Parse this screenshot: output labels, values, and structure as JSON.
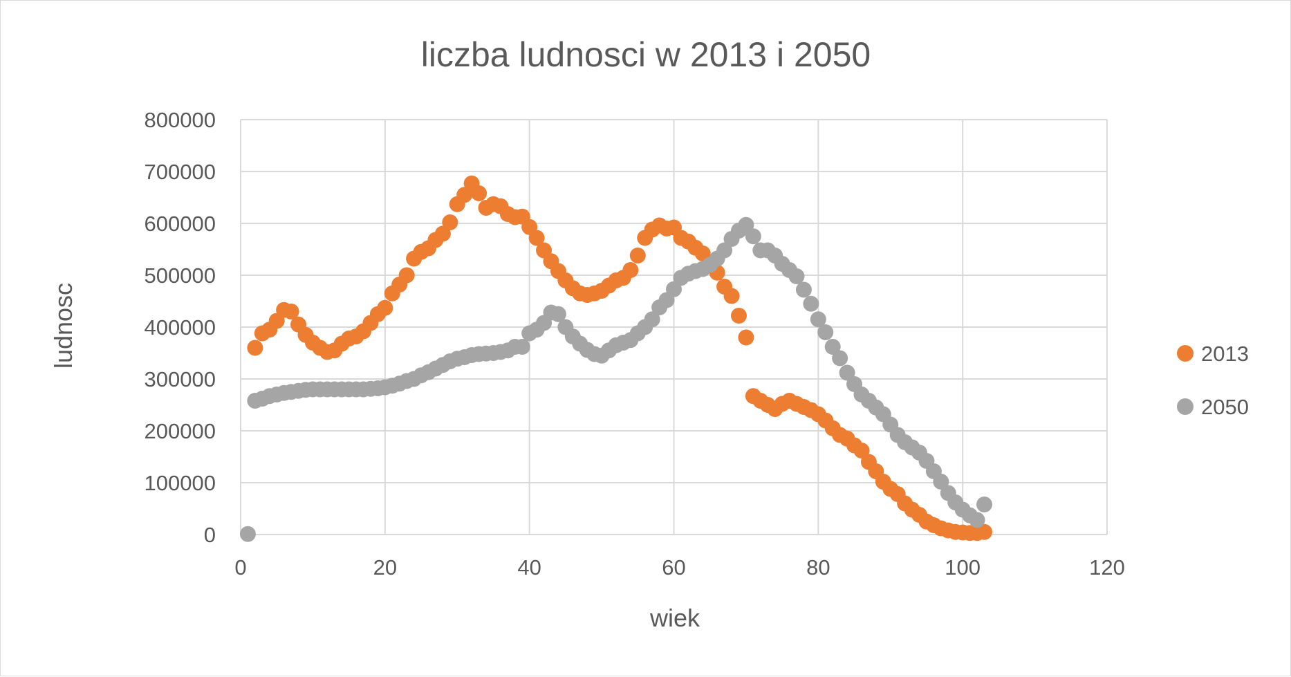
{
  "chart_data": {
    "type": "scatter",
    "title": "liczba ludnosci w 2013 i 2050",
    "xlabel": "wiek",
    "ylabel": "ludnosc",
    "xlim": [
      0,
      120
    ],
    "ylim": [
      0,
      800000
    ],
    "xticks": [
      0,
      20,
      40,
      60,
      80,
      100,
      120
    ],
    "yticks": [
      0,
      100000,
      200000,
      300000,
      400000,
      500000,
      600000,
      700000,
      800000
    ],
    "xtick_labels": [
      "0",
      "20",
      "40",
      "60",
      "80",
      "100",
      "120"
    ],
    "ytick_labels": [
      "0",
      "100000",
      "200000",
      "300000",
      "400000",
      "500000",
      "600000",
      "700000",
      "800000"
    ],
    "grid": true,
    "legend_position": "right",
    "series": [
      {
        "name": "2013",
        "color": "#ED7D31",
        "points": [
          [
            2,
            360000
          ],
          [
            3,
            388000
          ],
          [
            4,
            395000
          ],
          [
            5,
            412000
          ],
          [
            6,
            433000
          ],
          [
            7,
            430000
          ],
          [
            8,
            405000
          ],
          [
            9,
            385000
          ],
          [
            10,
            370000
          ],
          [
            11,
            360000
          ],
          [
            12,
            352000
          ],
          [
            13,
            355000
          ],
          [
            14,
            368000
          ],
          [
            15,
            378000
          ],
          [
            16,
            382000
          ],
          [
            17,
            392000
          ],
          [
            18,
            408000
          ],
          [
            19,
            425000
          ],
          [
            20,
            437000
          ],
          [
            21,
            465000
          ],
          [
            22,
            482000
          ],
          [
            23,
            500000
          ],
          [
            24,
            532000
          ],
          [
            25,
            545000
          ],
          [
            26,
            552000
          ],
          [
            27,
            568000
          ],
          [
            28,
            580000
          ],
          [
            29,
            602000
          ],
          [
            30,
            637000
          ],
          [
            31,
            655000
          ],
          [
            32,
            677000
          ],
          [
            33,
            658000
          ],
          [
            34,
            630000
          ],
          [
            35,
            637000
          ],
          [
            36,
            633000
          ],
          [
            37,
            618000
          ],
          [
            38,
            612000
          ],
          [
            39,
            613000
          ],
          [
            40,
            593000
          ],
          [
            41,
            572000
          ],
          [
            42,
            548000
          ],
          [
            43,
            527000
          ],
          [
            44,
            508000
          ],
          [
            45,
            490000
          ],
          [
            46,
            475000
          ],
          [
            47,
            465000
          ],
          [
            48,
            462000
          ],
          [
            49,
            465000
          ],
          [
            50,
            470000
          ],
          [
            51,
            480000
          ],
          [
            52,
            490000
          ],
          [
            53,
            495000
          ],
          [
            54,
            510000
          ],
          [
            55,
            538000
          ],
          [
            56,
            572000
          ],
          [
            57,
            588000
          ],
          [
            58,
            596000
          ],
          [
            59,
            590000
          ],
          [
            60,
            592000
          ],
          [
            61,
            572000
          ],
          [
            62,
            565000
          ],
          [
            63,
            553000
          ],
          [
            64,
            542000
          ],
          [
            65,
            522000
          ],
          [
            66,
            505000
          ],
          [
            67,
            478000
          ],
          [
            68,
            460000
          ],
          [
            69,
            422000
          ],
          [
            70,
            380000
          ],
          [
            71,
            267000
          ],
          [
            72,
            258000
          ],
          [
            73,
            250000
          ],
          [
            74,
            242000
          ],
          [
            75,
            252000
          ],
          [
            76,
            258000
          ],
          [
            77,
            252000
          ],
          [
            78,
            246000
          ],
          [
            79,
            240000
          ],
          [
            80,
            232000
          ],
          [
            81,
            220000
          ],
          [
            82,
            205000
          ],
          [
            83,
            192000
          ],
          [
            84,
            185000
          ],
          [
            85,
            172000
          ],
          [
            86,
            162000
          ],
          [
            87,
            140000
          ],
          [
            88,
            122000
          ],
          [
            89,
            102000
          ],
          [
            90,
            88000
          ],
          [
            91,
            78000
          ],
          [
            92,
            60000
          ],
          [
            93,
            48000
          ],
          [
            94,
            38000
          ],
          [
            95,
            25000
          ],
          [
            96,
            18000
          ],
          [
            97,
            12000
          ],
          [
            98,
            8000
          ],
          [
            99,
            5000
          ],
          [
            100,
            4000
          ],
          [
            101,
            3000
          ],
          [
            102,
            3000
          ],
          [
            103,
            5000
          ]
        ]
      },
      {
        "name": "2050",
        "color": "#A5A5A5",
        "points": [
          [
            1,
            1000
          ],
          [
            2,
            258000
          ],
          [
            3,
            262000
          ],
          [
            4,
            267000
          ],
          [
            5,
            270000
          ],
          [
            6,
            273000
          ],
          [
            7,
            275000
          ],
          [
            8,
            277000
          ],
          [
            9,
            279000
          ],
          [
            10,
            280000
          ],
          [
            11,
            280000
          ],
          [
            12,
            280000
          ],
          [
            13,
            280000
          ],
          [
            14,
            280000
          ],
          [
            15,
            280000
          ],
          [
            16,
            280000
          ],
          [
            17,
            280000
          ],
          [
            18,
            281000
          ],
          [
            19,
            282000
          ],
          [
            20,
            284000
          ],
          [
            21,
            287000
          ],
          [
            22,
            291000
          ],
          [
            23,
            296000
          ],
          [
            24,
            300000
          ],
          [
            25,
            307000
          ],
          [
            26,
            313000
          ],
          [
            27,
            320000
          ],
          [
            28,
            327000
          ],
          [
            29,
            334000
          ],
          [
            30,
            339000
          ],
          [
            31,
            342000
          ],
          [
            32,
            346000
          ],
          [
            33,
            348000
          ],
          [
            34,
            349000
          ],
          [
            35,
            350000
          ],
          [
            36,
            352000
          ],
          [
            37,
            355000
          ],
          [
            38,
            362000
          ],
          [
            39,
            362000
          ],
          [
            40,
            388000
          ],
          [
            41,
            395000
          ],
          [
            42,
            408000
          ],
          [
            43,
            428000
          ],
          [
            44,
            425000
          ],
          [
            45,
            400000
          ],
          [
            46,
            382000
          ],
          [
            47,
            368000
          ],
          [
            48,
            356000
          ],
          [
            49,
            348000
          ],
          [
            50,
            345000
          ],
          [
            51,
            355000
          ],
          [
            52,
            365000
          ],
          [
            53,
            370000
          ],
          [
            54,
            375000
          ],
          [
            55,
            388000
          ],
          [
            56,
            400000
          ],
          [
            57,
            415000
          ],
          [
            58,
            438000
          ],
          [
            59,
            452000
          ],
          [
            60,
            473000
          ],
          [
            61,
            495000
          ],
          [
            62,
            503000
          ],
          [
            63,
            508000
          ],
          [
            64,
            512000
          ],
          [
            65,
            520000
          ],
          [
            66,
            532000
          ],
          [
            67,
            548000
          ],
          [
            68,
            570000
          ],
          [
            69,
            586000
          ],
          [
            70,
            597000
          ],
          [
            71,
            575000
          ],
          [
            72,
            548000
          ],
          [
            73,
            548000
          ],
          [
            74,
            538000
          ],
          [
            75,
            522000
          ],
          [
            76,
            510000
          ],
          [
            77,
            498000
          ],
          [
            78,
            472000
          ],
          [
            79,
            445000
          ],
          [
            80,
            415000
          ],
          [
            81,
            390000
          ],
          [
            82,
            362000
          ],
          [
            83,
            340000
          ],
          [
            84,
            312000
          ],
          [
            85,
            290000
          ],
          [
            86,
            270000
          ],
          [
            87,
            258000
          ],
          [
            88,
            245000
          ],
          [
            89,
            232000
          ],
          [
            90,
            212000
          ],
          [
            91,
            192000
          ],
          [
            92,
            178000
          ],
          [
            93,
            168000
          ],
          [
            94,
            158000
          ],
          [
            95,
            142000
          ],
          [
            96,
            122000
          ],
          [
            97,
            102000
          ],
          [
            98,
            80000
          ],
          [
            99,
            62000
          ],
          [
            100,
            48000
          ],
          [
            101,
            37000
          ],
          [
            102,
            28000
          ],
          [
            103,
            58000
          ]
        ]
      }
    ]
  }
}
